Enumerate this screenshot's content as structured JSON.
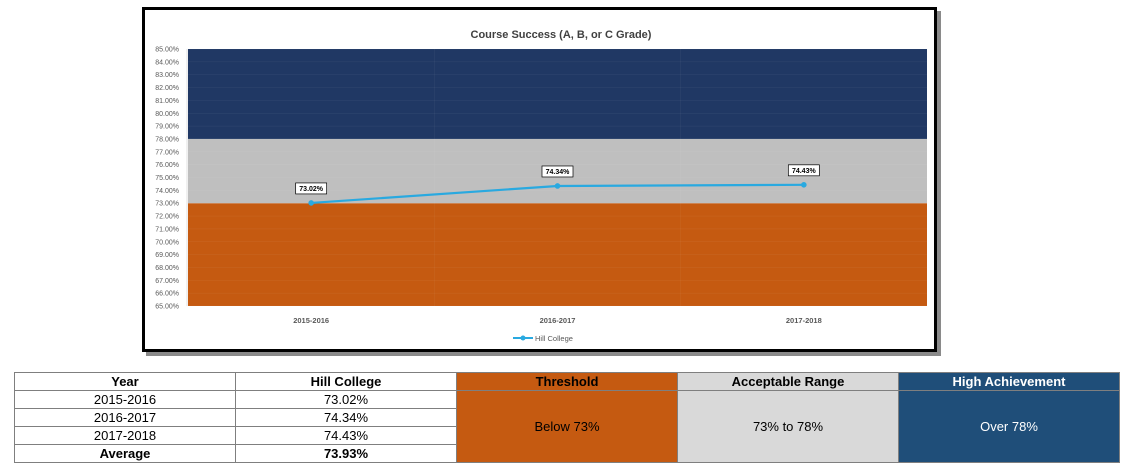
{
  "chart_data": {
    "type": "line",
    "title": "Course Success (A, B, or C Grade)",
    "categories": [
      "2015-2016",
      "2016-2017",
      "2017-2018"
    ],
    "series": [
      {
        "name": "Hill College",
        "values": [
          73.02,
          74.34,
          74.43
        ],
        "labels": [
          "73.02%",
          "74.34%",
          "74.43%"
        ],
        "color": "#29a9e0"
      }
    ],
    "ylim": [
      65,
      85
    ],
    "y_ticks": [
      "65.00%",
      "66.00%",
      "67.00%",
      "68.00%",
      "69.00%",
      "70.00%",
      "71.00%",
      "72.00%",
      "73.00%",
      "74.00%",
      "75.00%",
      "76.00%",
      "77.00%",
      "78.00%",
      "79.00%",
      "80.00%",
      "81.00%",
      "82.00%",
      "83.00%",
      "84.00%",
      "85.00%"
    ],
    "bands": [
      {
        "from": 65,
        "to": 73,
        "color": "#c55a11"
      },
      {
        "from": 73,
        "to": 78,
        "color": "#bfbfbf"
      },
      {
        "from": 78,
        "to": 85,
        "color": "#203864"
      }
    ],
    "legend": "bottom",
    "grid": true
  },
  "table": {
    "headers": [
      "Year",
      "Hill College",
      "Threshold",
      "Acceptable Range",
      "High Achievement"
    ],
    "rows": [
      [
        "2015-2016",
        "73.02%"
      ],
      [
        "2016-2017",
        "74.34%"
      ],
      [
        "2017-2018",
        "74.43%"
      ]
    ],
    "average_label": "Average",
    "average_value": "73.93%",
    "threshold_text": "Below 73%",
    "acceptable_text": "73% to 78%",
    "high_text": "Over 78%",
    "colors": {
      "threshold": "#c55a11",
      "acceptable": "#d9d9d9",
      "high": "#1f4e79"
    }
  }
}
